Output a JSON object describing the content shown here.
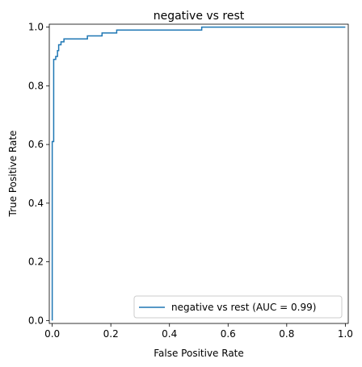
{
  "chart_data": {
    "type": "line",
    "title": "negative vs rest",
    "xlabel": "False Positive Rate",
    "ylabel": "True Positive Rate",
    "xlim": [
      -0.01,
      1.01
    ],
    "ylim": [
      -0.01,
      1.01
    ],
    "xticks": [
      "0.0",
      "0.2",
      "0.4",
      "0.6",
      "0.8",
      "1.0"
    ],
    "yticks": [
      "0.0",
      "0.2",
      "0.4",
      "0.6",
      "0.8",
      "1.0"
    ],
    "grid": false,
    "legend_position": "lower-right",
    "series": [
      {
        "name": "negative vs rest (AUC = 0.99)",
        "color": "#1f77b4",
        "x": [
          0,
          0,
          0.005,
          0.005,
          0.005,
          0.005,
          0.012,
          0.012,
          0.018,
          0.018,
          0.022,
          0.022,
          0.03,
          0.03,
          0.04,
          0.04,
          0.12,
          0.12,
          0.17,
          0.17,
          0.22,
          0.22,
          0.51,
          0.51,
          1.0
        ],
        "y": [
          0,
          0.61,
          0.61,
          0.66,
          0.89,
          0.89,
          0.89,
          0.9,
          0.9,
          0.92,
          0.92,
          0.94,
          0.94,
          0.95,
          0.95,
          0.96,
          0.96,
          0.97,
          0.97,
          0.98,
          0.98,
          0.99,
          0.99,
          1.0,
          1.0
        ]
      }
    ]
  }
}
